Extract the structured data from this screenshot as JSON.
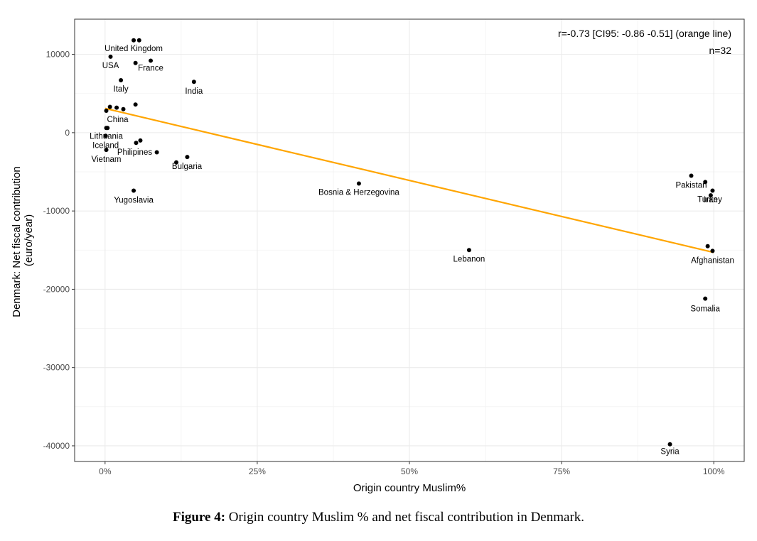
{
  "chart_data": {
    "type": "scatter",
    "xlabel": "Origin country Muslim%",
    "ylabel": [
      "Denmark: Net fiscal contribution",
      "(euro/year)"
    ],
    "xlim": [
      -0.05,
      1.05
    ],
    "ylim": [
      -42000,
      14500
    ],
    "x_ticks": [
      0,
      0.25,
      0.5,
      0.75,
      1.0
    ],
    "x_tick_labels": [
      "0%",
      "25%",
      "50%",
      "75%",
      "100%"
    ],
    "y_ticks": [
      10000,
      0,
      -10000,
      -20000,
      -30000,
      -40000
    ],
    "y_tick_labels": [
      "10000",
      "0",
      "-10000",
      "-20000",
      "-30000",
      "-40000"
    ],
    "grid": true,
    "annotation_lines": [
      "r=-0.73 [CI95: -0.86 -0.51] (orange line)",
      "n=32"
    ],
    "regression_line": {
      "color": "#FFA500",
      "x": [
        0.0,
        1.0
      ],
      "y": [
        3100,
        -15300
      ]
    },
    "points": [
      {
        "x": 0.047,
        "y": 11800,
        "label": "United Kingdom"
      },
      {
        "x": 0.056,
        "y": 11800,
        "label": ""
      },
      {
        "x": 0.009,
        "y": 9700,
        "label": "USA"
      },
      {
        "x": 0.05,
        "y": 8900,
        "label": ""
      },
      {
        "x": 0.075,
        "y": 9200,
        "label": "France"
      },
      {
        "x": 0.026,
        "y": 6700,
        "label": "Italy"
      },
      {
        "x": 0.146,
        "y": 6500,
        "label": "India"
      },
      {
        "x": 0.05,
        "y": 3600,
        "label": ""
      },
      {
        "x": 0.008,
        "y": 3300,
        "label": ""
      },
      {
        "x": 0.019,
        "y": 3200,
        "label": ""
      },
      {
        "x": 0.03,
        "y": 3000,
        "label": ""
      },
      {
        "x": 0.002,
        "y": 2800,
        "label": "China"
      },
      {
        "x": 0.002,
        "y": 600,
        "label": "Lithuania"
      },
      {
        "x": 0.004,
        "y": 600,
        "label": ""
      },
      {
        "x": 0.001,
        "y": -400,
        "label": "Iceland"
      },
      {
        "x": 0.058,
        "y": -1000,
        "label": ""
      },
      {
        "x": 0.051,
        "y": -1300,
        "label": "Philipines"
      },
      {
        "x": 0.002,
        "y": -2200,
        "label": "Vietnam"
      },
      {
        "x": 0.085,
        "y": -2500,
        "label": ""
      },
      {
        "x": 0.135,
        "y": -3100,
        "label": ""
      },
      {
        "x": 0.117,
        "y": -3800,
        "label": "Bulgaria"
      },
      {
        "x": 0.047,
        "y": -7400,
        "label": "Yugoslavia"
      },
      {
        "x": 0.417,
        "y": -6500,
        "label": "Bosnia & Herzegovina"
      },
      {
        "x": 0.598,
        "y": -15000,
        "label": "Lebanon"
      },
      {
        "x": 0.963,
        "y": -5500,
        "label": "Pakistan"
      },
      {
        "x": 0.986,
        "y": -6300,
        "label": ""
      },
      {
        "x": 0.998,
        "y": -7400,
        "label": "Turkey"
      },
      {
        "x": 0.995,
        "y": -8000,
        "label": "Iran"
      },
      {
        "x": 0.99,
        "y": -14500,
        "label": ""
      },
      {
        "x": 0.998,
        "y": -15100,
        "label": "Afghanistan"
      },
      {
        "x": 0.986,
        "y": -21200,
        "label": "Somalia"
      },
      {
        "x": 0.928,
        "y": -39800,
        "label": "Syria"
      }
    ]
  },
  "caption": {
    "prefix": "Figure 4:",
    "text": " Origin country Muslim % and net fiscal contribution in Denmark."
  }
}
